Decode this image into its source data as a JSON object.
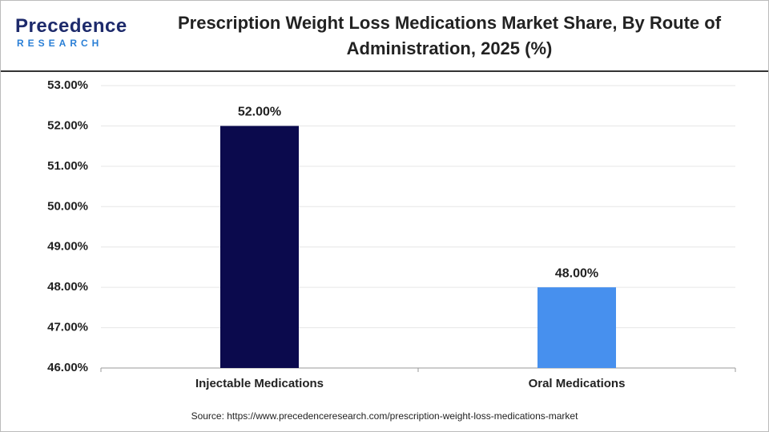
{
  "logo": {
    "name": "Precedence",
    "tagline": "RESEARCH"
  },
  "chart_data": {
    "type": "bar",
    "title": "Prescription Weight Loss Medications Market Share, By Route of Administration, 2025 (%)",
    "categories": [
      "Injectable Medications",
      "Oral Medications"
    ],
    "values": [
      52,
      48
    ],
    "value_labels": [
      "52.00%",
      "48.00%"
    ],
    "colors": [
      "#0b0a4d",
      "#4790ee"
    ],
    "ylim": [
      46,
      53
    ],
    "yticks": [
      {
        "value": 46,
        "label": "46.00%"
      },
      {
        "value": 47,
        "label": "47.00%"
      },
      {
        "value": 48,
        "label": "48.00%"
      },
      {
        "value": 49,
        "label": "49.00%"
      },
      {
        "value": 50,
        "label": "50.00%"
      },
      {
        "value": 51,
        "label": "51.00%"
      },
      {
        "value": 52,
        "label": "52.00%"
      },
      {
        "value": 53,
        "label": "53.00%"
      }
    ],
    "grid": true,
    "source": "Source: https://www.precedenceresearch.com/prescription-weight-loss-medications-market"
  }
}
